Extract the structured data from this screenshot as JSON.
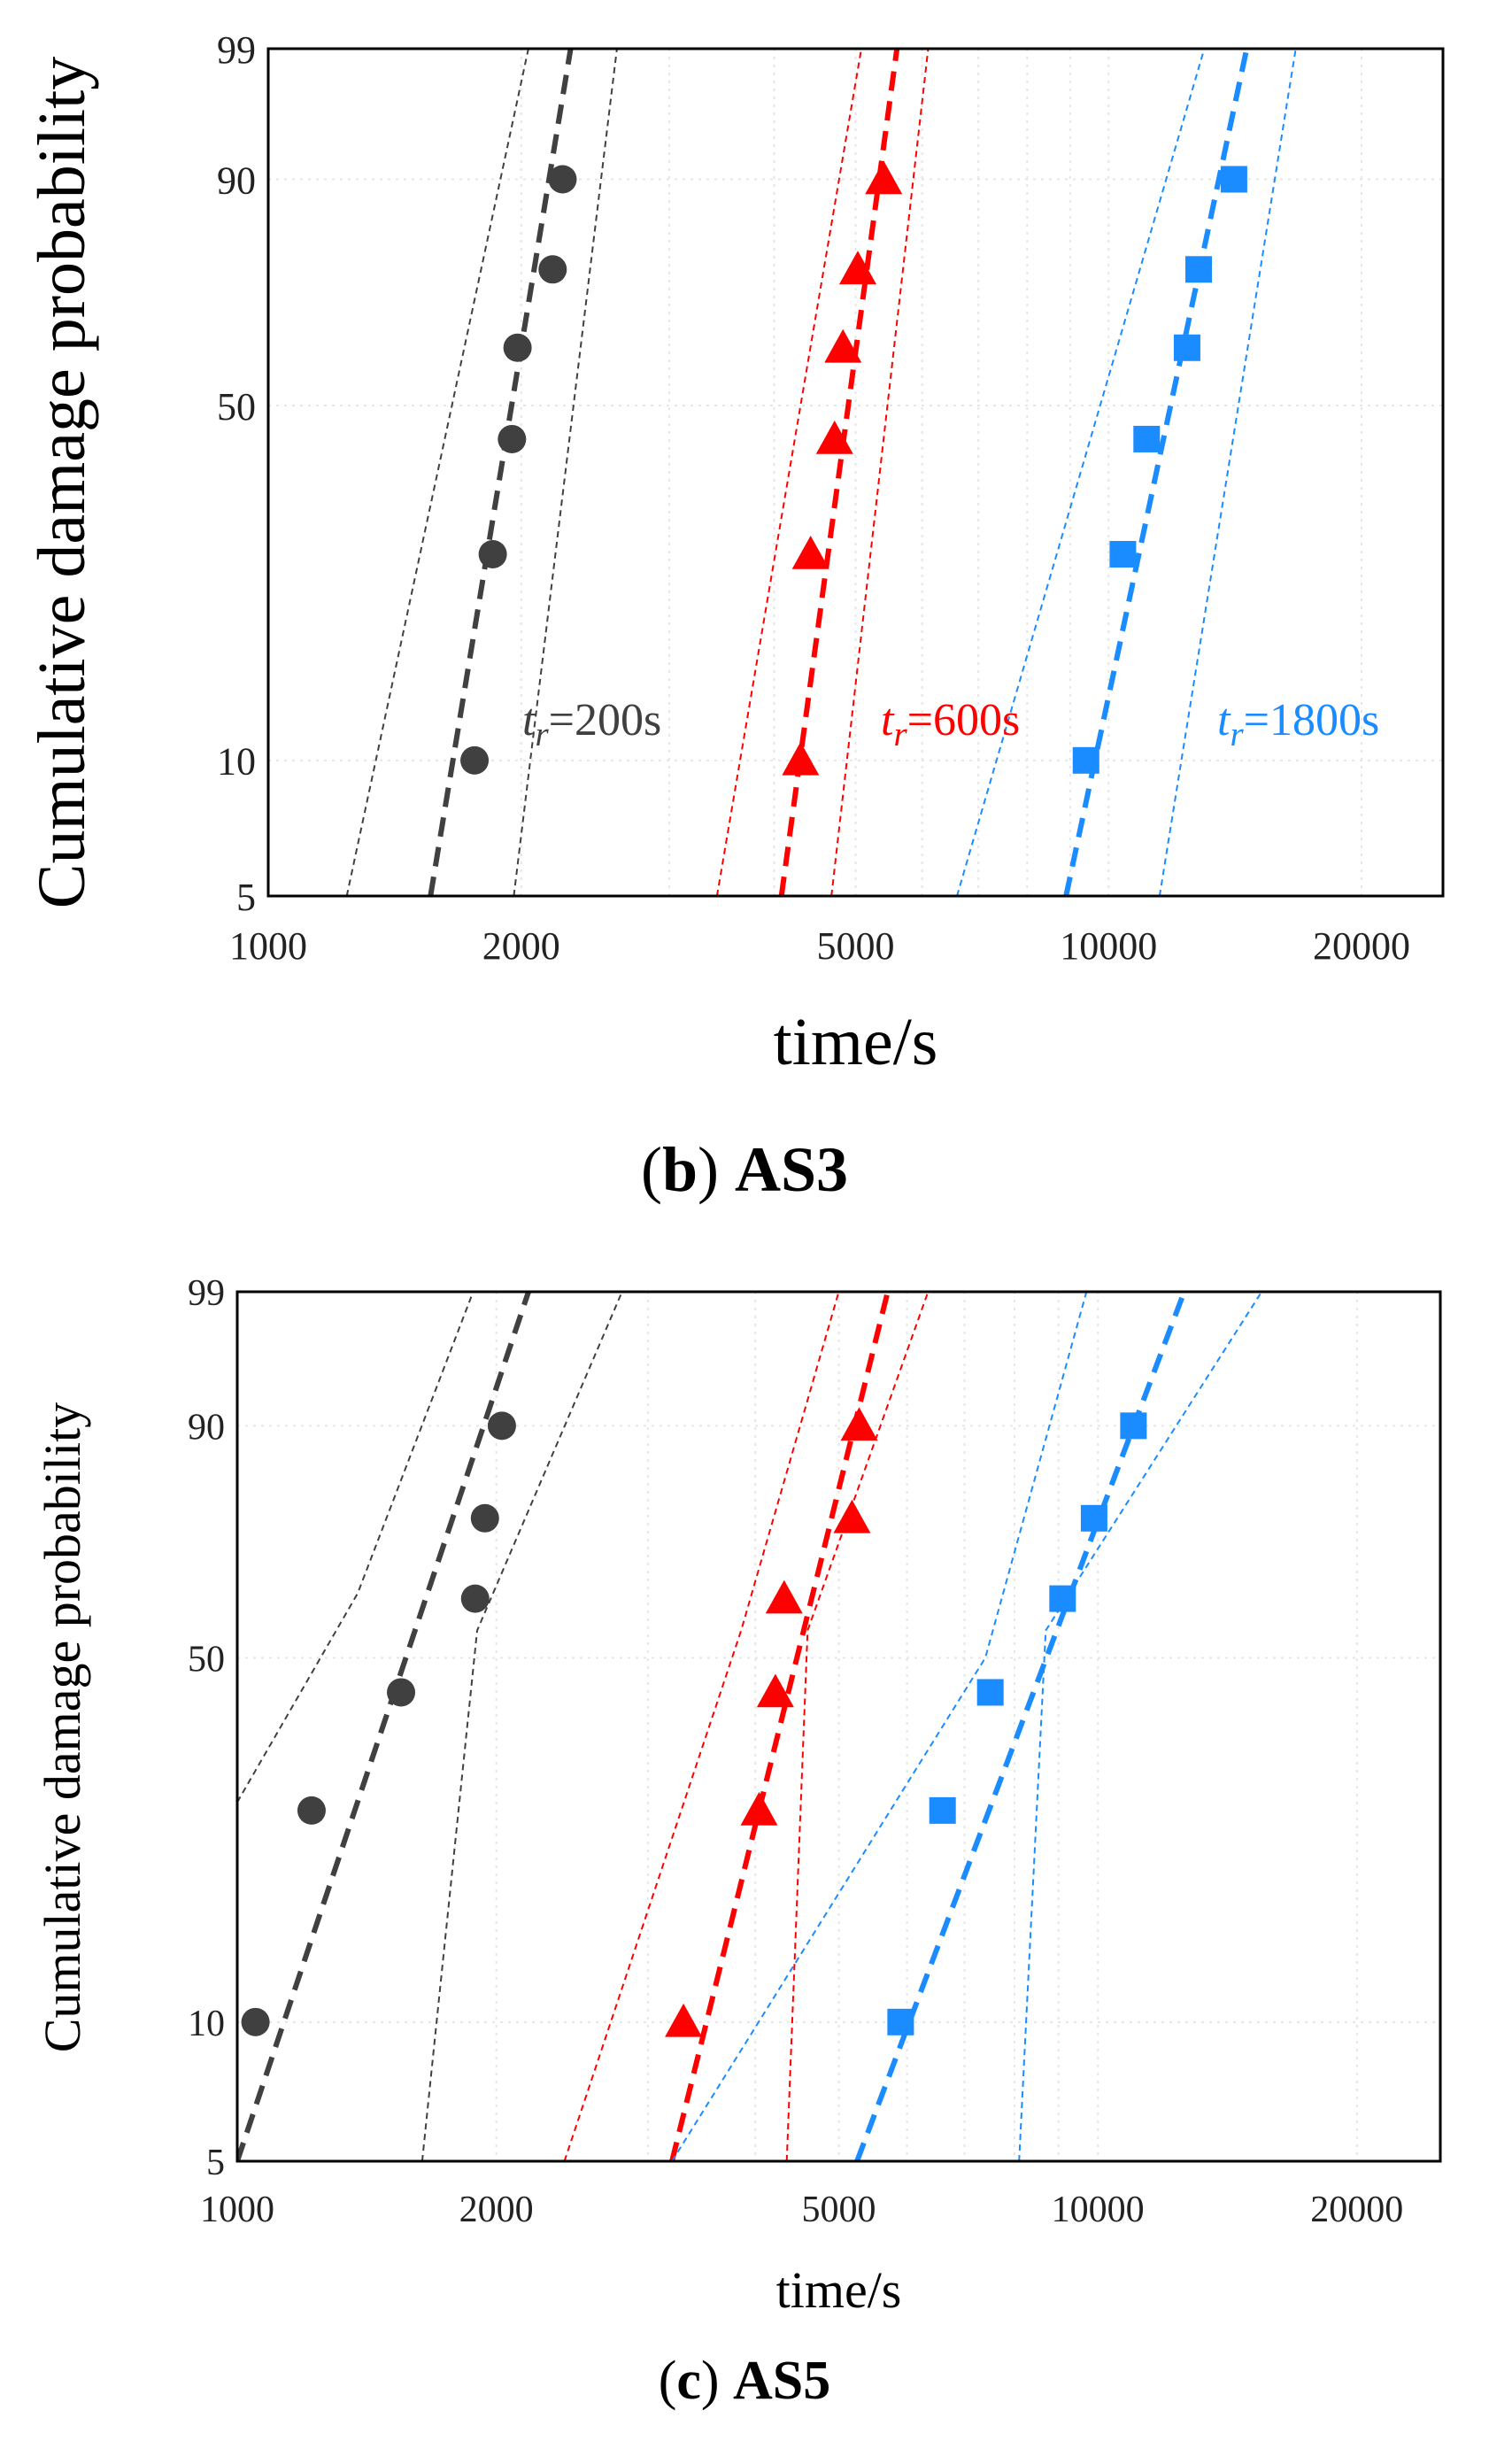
{
  "chart_data": [
    {
      "type": "scatter",
      "caption_label": "(b)",
      "caption_text": "AS3",
      "xlabel": "time/s",
      "ylabel": "Cumulative damage probability",
      "x_scale": "log",
      "y_scale": "weibull-probability",
      "xlim": [
        1000,
        25000
      ],
      "ylim": [
        5,
        99
      ],
      "xticks": [
        1000,
        2000,
        5000,
        10000,
        20000
      ],
      "xtick_labels": [
        "1000",
        "2000",
        "5000",
        "10000",
        "20000"
      ],
      "yticks": [
        5,
        10,
        50,
        90,
        99
      ],
      "ytick_labels": [
        "5",
        "10",
        "50",
        "90",
        "99"
      ],
      "grid": true,
      "series": [
        {
          "name": "tr=200s",
          "label_italic": "t",
          "label_sub": "r",
          "label_rest": "=200s",
          "color": "#404040",
          "marker": "circle",
          "points": [
            [
              1760,
              10
            ],
            [
              1850,
              27
            ],
            [
              1950,
              44
            ],
            [
              1980,
              61
            ],
            [
              2180,
              76
            ],
            [
              2240,
              90
            ]
          ],
          "fit": [
            [
              1560,
              5
            ],
            [
              2290,
              99
            ]
          ],
          "ci_lower": [
            [
              1240,
              5
            ],
            [
              2040,
              99
            ]
          ],
          "ci_upper": [
            [
              1960,
              5
            ],
            [
              2600,
              99
            ]
          ]
        },
        {
          "name": "tr=600s",
          "label_italic": "t",
          "label_sub": "r",
          "label_rest": "=600s",
          "color": "#ff0000",
          "marker": "triangle",
          "points": [
            [
              4300,
              10
            ],
            [
              4420,
              27
            ],
            [
              4720,
              44
            ],
            [
              4830,
              61
            ],
            [
              5030,
              76
            ],
            [
              5400,
              90
            ]
          ],
          "fit": [
            [
              4080,
              5
            ],
            [
              5600,
              99
            ]
          ],
          "ci_lower": [
            [
              3420,
              5
            ],
            [
              5080,
              99
            ]
          ],
          "ci_upper": [
            [
              4680,
              5
            ],
            [
              6100,
              99
            ]
          ]
        },
        {
          "name": "tr=1800s",
          "label_italic": "t",
          "label_sub": "r",
          "label_rest": "=1800s",
          "color": "#1a8cff",
          "marker": "square",
          "points": [
            [
              9400,
              10
            ],
            [
              10400,
              27
            ],
            [
              11100,
              44
            ],
            [
              12400,
              61
            ],
            [
              12800,
              76
            ],
            [
              14100,
              90
            ]
          ],
          "fit": [
            [
              8900,
              5
            ],
            [
              14600,
              99
            ]
          ],
          "ci_lower": [
            [
              6600,
              5
            ],
            [
              13000,
              99
            ]
          ],
          "ci_upper": [
            [
              11500,
              5
            ],
            [
              16700,
              99
            ]
          ]
        }
      ]
    },
    {
      "type": "scatter",
      "caption_label": "(c)",
      "caption_text": "AS5",
      "xlabel": "time/s",
      "ylabel": "Cumulative damage probability",
      "x_scale": "log",
      "y_scale": "weibull-probability",
      "xlim": [
        1000,
        25000
      ],
      "ylim": [
        5,
        99
      ],
      "xticks": [
        1000,
        2000,
        5000,
        10000,
        20000
      ],
      "xtick_labels": [
        "1000",
        "2000",
        "5000",
        "10000",
        "20000"
      ],
      "yticks": [
        5,
        10,
        50,
        90,
        99
      ],
      "ytick_labels": [
        "5",
        "10",
        "50",
        "90",
        "99"
      ],
      "grid": true,
      "series": [
        {
          "name": "black",
          "color": "#404040",
          "marker": "circle",
          "points": [
            [
              1050,
              10
            ],
            [
              1220,
              27
            ],
            [
              1550,
              44
            ],
            [
              1890,
              61
            ],
            [
              1940,
              76
            ],
            [
              2030,
              90
            ]
          ],
          "fit": [
            [
              1000,
              5
            ],
            [
              2180,
              99
            ]
          ],
          "ci_lower": [
            [
              1000,
              28
            ],
            [
              1380,
              62
            ],
            [
              1880,
              99
            ]
          ],
          "ci_upper": [
            [
              1640,
              5
            ],
            [
              1900,
              55
            ],
            [
              2800,
              99
            ]
          ]
        },
        {
          "name": "red",
          "color": "#ff0000",
          "marker": "triangle",
          "points": [
            [
              3300,
              10
            ],
            [
              4040,
              27
            ],
            [
              4220,
              44
            ],
            [
              4320,
              61
            ],
            [
              5180,
              76
            ],
            [
              5280,
              90
            ]
          ],
          "fit": [
            [
              3200,
              5
            ],
            [
              5700,
              99
            ]
          ],
          "ci_lower": [
            [
              2400,
              5
            ],
            [
              3850,
              55
            ],
            [
              5000,
              99
            ]
          ],
          "ci_upper": [
            [
              4350,
              5
            ],
            [
              4600,
              55
            ],
            [
              6350,
              99
            ]
          ]
        },
        {
          "name": "blue",
          "color": "#1a8cff",
          "marker": "square",
          "points": [
            [
              5900,
              10
            ],
            [
              6600,
              27
            ],
            [
              7500,
              44
            ],
            [
              9100,
              61
            ],
            [
              9900,
              76
            ],
            [
              11000,
              90
            ]
          ],
          "fit": [
            [
              5250,
              5
            ],
            [
              12600,
              99
            ]
          ],
          "ci_lower": [
            [
              3200,
              5
            ],
            [
              7400,
              50
            ],
            [
              9700,
              99
            ]
          ],
          "ci_upper": [
            [
              8100,
              5
            ],
            [
              8700,
              55
            ],
            [
              15500,
              99
            ]
          ]
        }
      ]
    }
  ]
}
